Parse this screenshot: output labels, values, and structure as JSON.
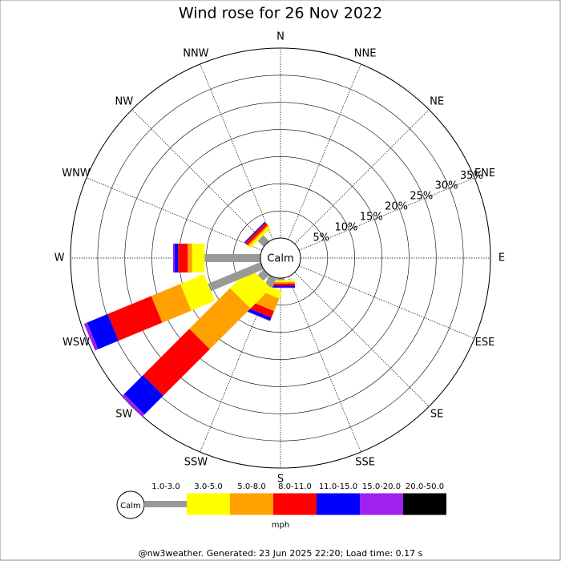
{
  "chart_data": {
    "type": "windrose",
    "title": "Wind rose for 26 Nov 2022",
    "directions": [
      "N",
      "NNE",
      "NE",
      "ENE",
      "E",
      "ESE",
      "SE",
      "SSE",
      "S",
      "SSW",
      "SW",
      "WSW",
      "W",
      "WNW",
      "NW",
      "NNW"
    ],
    "center_label": "Calm",
    "rlim": [
      0,
      35
    ],
    "rticks": [
      {
        "value": 5,
        "label": "5%"
      },
      {
        "value": 10,
        "label": "10%"
      },
      {
        "value": 15,
        "label": "15%"
      },
      {
        "value": 20,
        "label": "20%"
      },
      {
        "value": 25,
        "label": "25%"
      },
      {
        "value": 30,
        "label": "30%"
      },
      {
        "value": 35,
        "label": "35%"
      }
    ],
    "series": [
      {
        "name": "1.0-3.0",
        "color": "#999999",
        "values": [
          0,
          0,
          0,
          0,
          0,
          0,
          0,
          0,
          0.4,
          1.9,
          1.5,
          10.5,
          10.3,
          0,
          1.5,
          0
        ]
      },
      {
        "name": "3.0-5.0",
        "color": "#ffff00",
        "values": [
          0,
          0,
          0,
          0,
          0,
          0,
          0,
          0,
          0.3,
          1.4,
          5.3,
          4.7,
          2.3,
          0,
          0.5,
          0
        ]
      },
      {
        "name": "5.0-8.0",
        "color": "#ffa000",
        "values": [
          0,
          0,
          0,
          0,
          0,
          0,
          0,
          0,
          0.3,
          2.5,
          10.6,
          5.8,
          0.8,
          0,
          0.3,
          0
        ]
      },
      {
        "name": "8.0-11.0",
        "color": "#ff0000",
        "values": [
          0,
          0,
          0,
          0,
          0,
          0,
          0,
          0,
          0.4,
          1.3,
          12.1,
          8.7,
          1.8,
          0,
          0.6,
          0
        ]
      },
      {
        "name": "11.0-15.0",
        "color": "#0000ff",
        "values": [
          0,
          0,
          0,
          0,
          0,
          0,
          0,
          0,
          0.3,
          0.6,
          4.9,
          4.1,
          0.6,
          0,
          0.2,
          0
        ]
      },
      {
        "name": "15.0-20.0",
        "color": "#a020f0",
        "values": [
          0,
          0,
          0,
          0,
          0,
          0,
          0,
          0,
          0.1,
          0.1,
          0.6,
          0.6,
          0.3,
          0,
          0,
          0
        ]
      },
      {
        "name": "20.0-50.0",
        "color": "#000000",
        "values": [
          0,
          0,
          0,
          0,
          0,
          0,
          0,
          0,
          0,
          0,
          0,
          0,
          0,
          0,
          0,
          0
        ]
      }
    ],
    "legend_unit": "mph",
    "footer": "@nw3weather. Generated: 23 Jun 2025 22:20; Load time: 0.17 s"
  }
}
